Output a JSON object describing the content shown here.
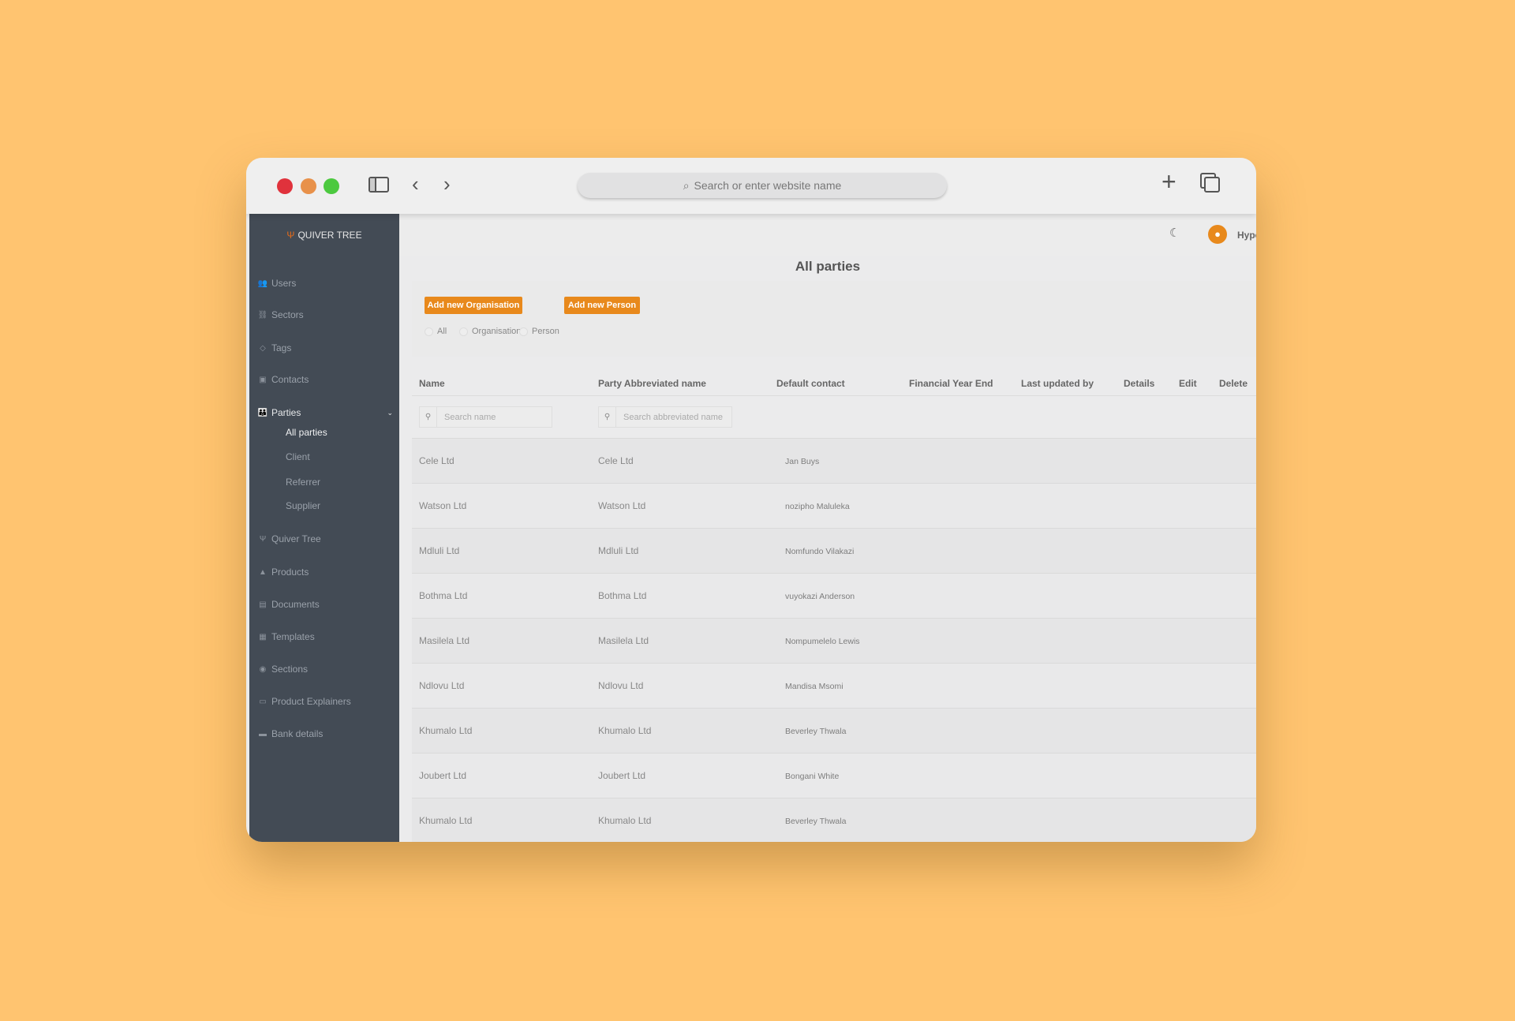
{
  "browser": {
    "search_placeholder": "Search or enter website name",
    "colors": {
      "close": "#e0323c",
      "minimize": "#e8914a",
      "maximize": "#4cc93f"
    }
  },
  "app": {
    "logo": "QUIVER TREE",
    "user": "Hyper",
    "accent": "#e8891c"
  },
  "sidebar": {
    "items": [
      {
        "label": "Users",
        "icon": "users-icon"
      },
      {
        "label": "Sectors",
        "icon": "sitemap-icon"
      },
      {
        "label": "Tags",
        "icon": "tag-icon"
      },
      {
        "label": "Contacts",
        "icon": "contact-card-icon"
      },
      {
        "label": "Parties",
        "icon": "group-icon"
      },
      {
        "label": "Quiver Tree",
        "icon": "tree-icon"
      },
      {
        "label": "Products",
        "icon": "boxes-icon"
      },
      {
        "label": "Documents",
        "icon": "document-icon"
      },
      {
        "label": "Templates",
        "icon": "grid-icon"
      },
      {
        "label": "Sections",
        "icon": "sections-icon"
      },
      {
        "label": "Product Explainers",
        "icon": "folder-icon"
      },
      {
        "label": "Bank details",
        "icon": "credit-card-icon"
      }
    ],
    "parties_sub": [
      "All parties",
      "Client",
      "Referrer",
      "Supplier"
    ]
  },
  "page": {
    "title": "All parties",
    "add_org": "Add new Organisation",
    "add_person": "Add new Person",
    "filters": [
      "All",
      "Organisation",
      "Person"
    ]
  },
  "table": {
    "headers": [
      "Name",
      "Party Abbreviated name",
      "Default contact",
      "Financial Year End",
      "Last updated by",
      "Details",
      "Edit",
      "Delete"
    ],
    "search_name_placeholder": "Search name",
    "search_abbrev_placeholder": "Search abbreviated name",
    "rows": [
      {
        "name": "Cele Ltd",
        "abbr": "Cele Ltd",
        "contact": "Jan Buys"
      },
      {
        "name": "Watson Ltd",
        "abbr": "Watson Ltd",
        "contact": "nozipho Maluleka"
      },
      {
        "name": "Mdluli Ltd",
        "abbr": "Mdluli Ltd",
        "contact": "Nomfundo Vilakazi"
      },
      {
        "name": "Bothma Ltd",
        "abbr": "Bothma Ltd",
        "contact": "vuyokazi Anderson"
      },
      {
        "name": "Masilela Ltd",
        "abbr": "Masilela Ltd",
        "contact": "Nompumelelo Lewis"
      },
      {
        "name": "Ndlovu Ltd",
        "abbr": "Ndlovu Ltd",
        "contact": "Mandisa Msomi"
      },
      {
        "name": "Khumalo Ltd",
        "abbr": "Khumalo Ltd",
        "contact": "Beverley Thwala"
      },
      {
        "name": "Joubert Ltd",
        "abbr": "Joubert Ltd",
        "contact": "Bongani White"
      },
      {
        "name": "Khumalo Ltd",
        "abbr": "Khumalo Ltd",
        "contact": "Beverley Thwala"
      }
    ]
  }
}
